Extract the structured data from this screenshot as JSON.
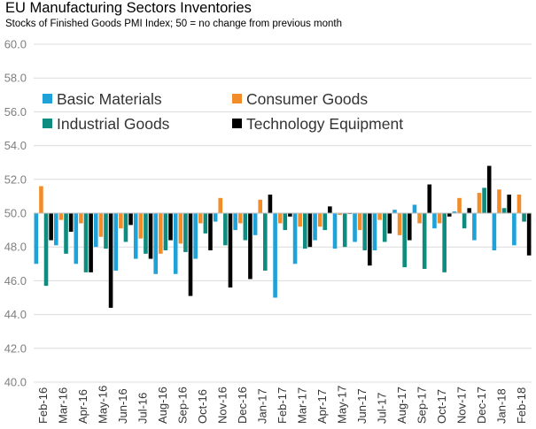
{
  "chart_data": {
    "type": "bar",
    "title": "EU Manufacturing Sectors Inventories",
    "subtitle": "Stocks of Finished Goods PMI Index; 50 = no change from previous month",
    "xlabel": "",
    "ylabel": "",
    "baseline": 50,
    "ylim": [
      40,
      60
    ],
    "yticks": [
      "40.0",
      "42.0",
      "44.0",
      "46.0",
      "48.0",
      "50.0",
      "52.0",
      "54.0",
      "56.0",
      "58.0",
      "60.0"
    ],
    "grid": true,
    "legend_position": "top-left",
    "categories": [
      "Feb-16",
      "Mar-16",
      "Apr-16",
      "May-16",
      "Jun-16",
      "Jul-16",
      "Aug-16",
      "Sep-16",
      "Oct-16",
      "Nov-16",
      "Dec-16",
      "Jan-17",
      "Feb-17",
      "Mar-17",
      "Apr-17",
      "May-17",
      "Jun-17",
      "Jul-17",
      "Aug-17",
      "Sep-17",
      "Oct-17",
      "Nov-17",
      "Dec-17",
      "Jan-18",
      "Feb-18"
    ],
    "series": [
      {
        "name": "Basic Materials",
        "color": "#1fa2d8",
        "values": [
          47.0,
          48.1,
          47.0,
          48.0,
          46.6,
          47.3,
          46.4,
          46.4,
          47.3,
          49.5,
          49.0,
          48.7,
          45.0,
          47.0,
          48.4,
          47.9,
          48.3,
          47.8,
          50.2,
          50.5,
          49.1,
          50.1,
          48.4,
          47.8,
          48.1
        ]
      },
      {
        "name": "Consumer Goods",
        "color": "#f28c28",
        "values": [
          51.6,
          49.6,
          49.4,
          48.6,
          49.1,
          48.5,
          47.6,
          48.2,
          49.4,
          50.9,
          49.4,
          50.8,
          49.4,
          49.2,
          49.2,
          49.9,
          49.0,
          49.6,
          48.7,
          49.4,
          49.4,
          50.9,
          51.2,
          51.4,
          51.1
        ]
      },
      {
        "name": "Industrial Goods",
        "color": "#0e8c7f",
        "values": [
          45.7,
          47.6,
          46.5,
          47.9,
          48.3,
          47.6,
          47.8,
          47.7,
          48.8,
          48.1,
          48.4,
          46.6,
          49.0,
          47.9,
          49.0,
          48.0,
          47.8,
          48.3,
          46.8,
          46.7,
          46.5,
          49.1,
          51.5,
          50.3,
          49.5
        ]
      },
      {
        "name": "Technology Equipment",
        "color": "#000000",
        "values": [
          48.4,
          48.9,
          46.5,
          44.4,
          49.3,
          47.3,
          48.4,
          45.1,
          47.8,
          45.6,
          46.1,
          51.1,
          49.8,
          48.0,
          50.4,
          50.0,
          46.9,
          48.8,
          48.4,
          51.7,
          49.8,
          50.3,
          52.8,
          51.1,
          47.5
        ]
      }
    ]
  }
}
